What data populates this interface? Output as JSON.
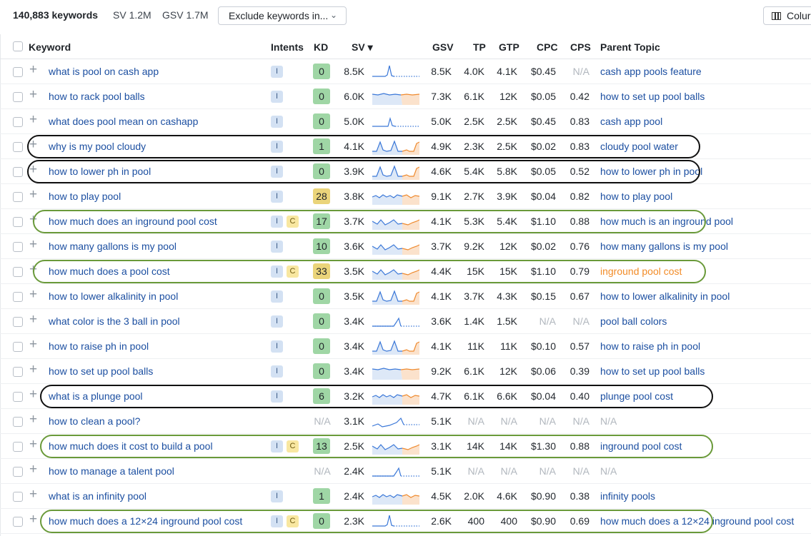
{
  "topbar": {
    "count": "140,883 keywords",
    "sv": "SV 1.2M",
    "gsv": "GSV 1.7M",
    "exclude": "Exclude keywords in...",
    "columns": "Colur"
  },
  "header": {
    "keyword": "Keyword",
    "intents": "Intents",
    "kd": "KD",
    "sv": "SV ▾",
    "gsv": "GSV",
    "tp": "TP",
    "gtp": "GTP",
    "cpc": "CPC",
    "cps": "CPS",
    "parent": "Parent Topic"
  },
  "colors": {
    "link": "#1c4fa1",
    "kd_green": "#9fd6a5",
    "kd_yellow": "#ead47a",
    "intent_i": "#d3e1f3",
    "intent_c": "#f8e7a1",
    "circle_black": "#111111",
    "circle_green": "#6a9a3a",
    "parent_orange": "#f28c28"
  },
  "rows": [
    {
      "kw": "what is pool on cash app",
      "intents": [
        "I"
      ],
      "kd": "0",
      "kd_color": "g",
      "sv": "8.5K",
      "gsv": "8.5K",
      "tp": "4.0K",
      "gtp": "4.1K",
      "cpc": "$0.45",
      "cps": "N/A",
      "parent": "cash app pools feature",
      "trend": "spike-left",
      "trend_icon": "sparkline"
    },
    {
      "kw": "how to rack pool balls",
      "intents": [
        "I"
      ],
      "kd": "0",
      "kd_color": "g",
      "sv": "6.0K",
      "gsv": "7.3K",
      "tp": "6.1K",
      "gtp": "12K",
      "cpc": "$0.05",
      "cps": "0.42",
      "parent": "how to set up pool balls",
      "trend": "flat-area",
      "trend_icon": "sparkline"
    },
    {
      "kw": "what does pool mean on cashapp",
      "intents": [
        "I"
      ],
      "kd": "0",
      "kd_color": "g",
      "sv": "5.0K",
      "gsv": "5.0K",
      "tp": "2.5K",
      "gtp": "2.5K",
      "cpc": "$0.45",
      "cps": "0.83",
      "parent": "cash app pool",
      "trend": "spike-mid",
      "trend_icon": "sparkline"
    },
    {
      "kw": "why is my pool cloudy",
      "intents": [
        "I"
      ],
      "kd": "1",
      "kd_color": "g",
      "sv": "4.1K",
      "gsv": "4.9K",
      "tp": "2.3K",
      "gtp": "2.5K",
      "cpc": "$0.02",
      "cps": "0.83",
      "parent": "cloudy pool water",
      "trend": "seasonal",
      "trend_icon": "sparkline"
    },
    {
      "kw": "how to lower ph in pool",
      "intents": [
        "I"
      ],
      "kd": "0",
      "kd_color": "g",
      "sv": "3.9K",
      "gsv": "4.6K",
      "tp": "5.4K",
      "gtp": "5.8K",
      "cpc": "$0.05",
      "cps": "0.52",
      "parent": "how to lower ph in pool",
      "trend": "seasonal",
      "trend_icon": "sparkline"
    },
    {
      "kw": "how to play pool",
      "intents": [
        "I"
      ],
      "kd": "28",
      "kd_color": "y",
      "sv": "3.8K",
      "gsv": "9.1K",
      "tp": "2.7K",
      "gtp": "3.9K",
      "cpc": "$0.04",
      "cps": "0.82",
      "parent": "how to play pool",
      "trend": "wavy",
      "trend_icon": "sparkline"
    },
    {
      "kw": "how much does an inground pool cost",
      "intents": [
        "I",
        "C"
      ],
      "kd": "17",
      "kd_color": "g",
      "sv": "3.7K",
      "gsv": "4.1K",
      "tp": "5.3K",
      "gtp": "5.4K",
      "cpc": "$1.10",
      "cps": "0.88",
      "parent": "how much is an inground pool",
      "trend": "seasonal-soft",
      "trend_icon": "sparkline"
    },
    {
      "kw": "how many gallons is my pool",
      "intents": [
        "I"
      ],
      "kd": "10",
      "kd_color": "g",
      "sv": "3.6K",
      "gsv": "3.7K",
      "tp": "9.2K",
      "gtp": "12K",
      "cpc": "$0.02",
      "cps": "0.76",
      "parent": "how many gallons is my pool",
      "trend": "seasonal-soft",
      "trend_icon": "sparkline"
    },
    {
      "kw": "how much does a pool cost",
      "intents": [
        "I",
        "C"
      ],
      "kd": "33",
      "kd_color": "y",
      "sv": "3.5K",
      "gsv": "4.4K",
      "tp": "15K",
      "gtp": "15K",
      "cpc": "$1.10",
      "cps": "0.79",
      "parent": "inground pool cost",
      "parent_style": "orange",
      "trend": "seasonal-soft",
      "trend_icon": "sparkline"
    },
    {
      "kw": "how to lower alkalinity in pool",
      "intents": [
        "I"
      ],
      "kd": "0",
      "kd_color": "g",
      "sv": "3.5K",
      "gsv": "4.1K",
      "tp": "3.7K",
      "gtp": "4.3K",
      "cpc": "$0.15",
      "cps": "0.67",
      "parent": "how to lower alkalinity in pool",
      "trend": "seasonal",
      "trend_icon": "sparkline"
    },
    {
      "kw": "what color is the 3 ball in pool",
      "intents": [
        "I"
      ],
      "kd": "0",
      "kd_color": "g",
      "sv": "3.4K",
      "gsv": "3.6K",
      "tp": "1.4K",
      "gtp": "1.5K",
      "cpc": "N/A",
      "cps": "N/A",
      "parent": "pool ball colors",
      "trend": "spike-right",
      "trend_icon": "sparkline"
    },
    {
      "kw": "how to raise ph in pool",
      "intents": [
        "I"
      ],
      "kd": "0",
      "kd_color": "g",
      "sv": "3.4K",
      "gsv": "4.1K",
      "tp": "11K",
      "gtp": "11K",
      "cpc": "$0.10",
      "cps": "0.57",
      "parent": "how to raise ph in pool",
      "trend": "seasonal",
      "trend_icon": "sparkline"
    },
    {
      "kw": "how to set up pool balls",
      "intents": [
        "I"
      ],
      "kd": "0",
      "kd_color": "g",
      "sv": "3.4K",
      "gsv": "9.2K",
      "tp": "6.1K",
      "gtp": "12K",
      "cpc": "$0.06",
      "cps": "0.39",
      "parent": "how to set up pool balls",
      "trend": "flat-area",
      "trend_icon": "sparkline"
    },
    {
      "kw": "what is a plunge pool",
      "intents": [
        "I"
      ],
      "kd": "6",
      "kd_color": "g",
      "sv": "3.2K",
      "gsv": "4.7K",
      "tp": "6.1K",
      "gtp": "6.6K",
      "cpc": "$0.04",
      "cps": "0.40",
      "parent": "plunge pool cost",
      "trend": "wavy",
      "trend_icon": "sparkline"
    },
    {
      "kw": "how to clean a pool?",
      "intents": [],
      "kd": "N/A",
      "kd_color": "na",
      "sv": "3.1K",
      "gsv": "5.1K",
      "tp": "N/A",
      "gtp": "N/A",
      "cpc": "N/A",
      "cps": "N/A",
      "parent": "N/A",
      "parent_style": "na",
      "trend": "ramp",
      "trend_icon": "sparkline"
    },
    {
      "kw": "how much does it cost to build a pool",
      "intents": [
        "I",
        "C"
      ],
      "kd": "13",
      "kd_color": "g",
      "sv": "2.5K",
      "gsv": "3.1K",
      "tp": "14K",
      "gtp": "14K",
      "cpc": "$1.30",
      "cps": "0.88",
      "parent": "inground pool cost",
      "trend": "seasonal-soft",
      "trend_icon": "sparkline"
    },
    {
      "kw": "how to manage a talent pool",
      "intents": [],
      "kd": "N/A",
      "kd_color": "na",
      "sv": "2.4K",
      "gsv": "5.1K",
      "tp": "N/A",
      "gtp": "N/A",
      "cpc": "N/A",
      "cps": "N/A",
      "parent": "N/A",
      "parent_style": "na",
      "trend": "spike-right",
      "trend_icon": "sparkline"
    },
    {
      "kw": "what is an infinity pool",
      "intents": [
        "I"
      ],
      "kd": "1",
      "kd_color": "g",
      "sv": "2.4K",
      "gsv": "4.5K",
      "tp": "2.0K",
      "gtp": "4.6K",
      "cpc": "$0.90",
      "cps": "0.38",
      "parent": "infinity pools",
      "trend": "wavy",
      "trend_icon": "sparkline"
    },
    {
      "kw": "how much does a 12×24 inground pool cost",
      "intents": [
        "I",
        "C"
      ],
      "kd": "0",
      "kd_color": "g",
      "sv": "2.3K",
      "gsv": "2.6K",
      "tp": "400",
      "gtp": "400",
      "cpc": "$0.90",
      "cps": "0.69",
      "parent": "how much does a 12×24 inground pool cost",
      "trend": "spike-left",
      "trend_icon": "sparkline"
    }
  ],
  "highlights": [
    {
      "row": 3,
      "color": "black"
    },
    {
      "row": 4,
      "color": "black"
    },
    {
      "row": 6,
      "color": "green"
    },
    {
      "row": 8,
      "color": "green"
    },
    {
      "row": 13,
      "color": "black"
    },
    {
      "row": 15,
      "color": "green"
    },
    {
      "row": 18,
      "color": "green"
    }
  ]
}
